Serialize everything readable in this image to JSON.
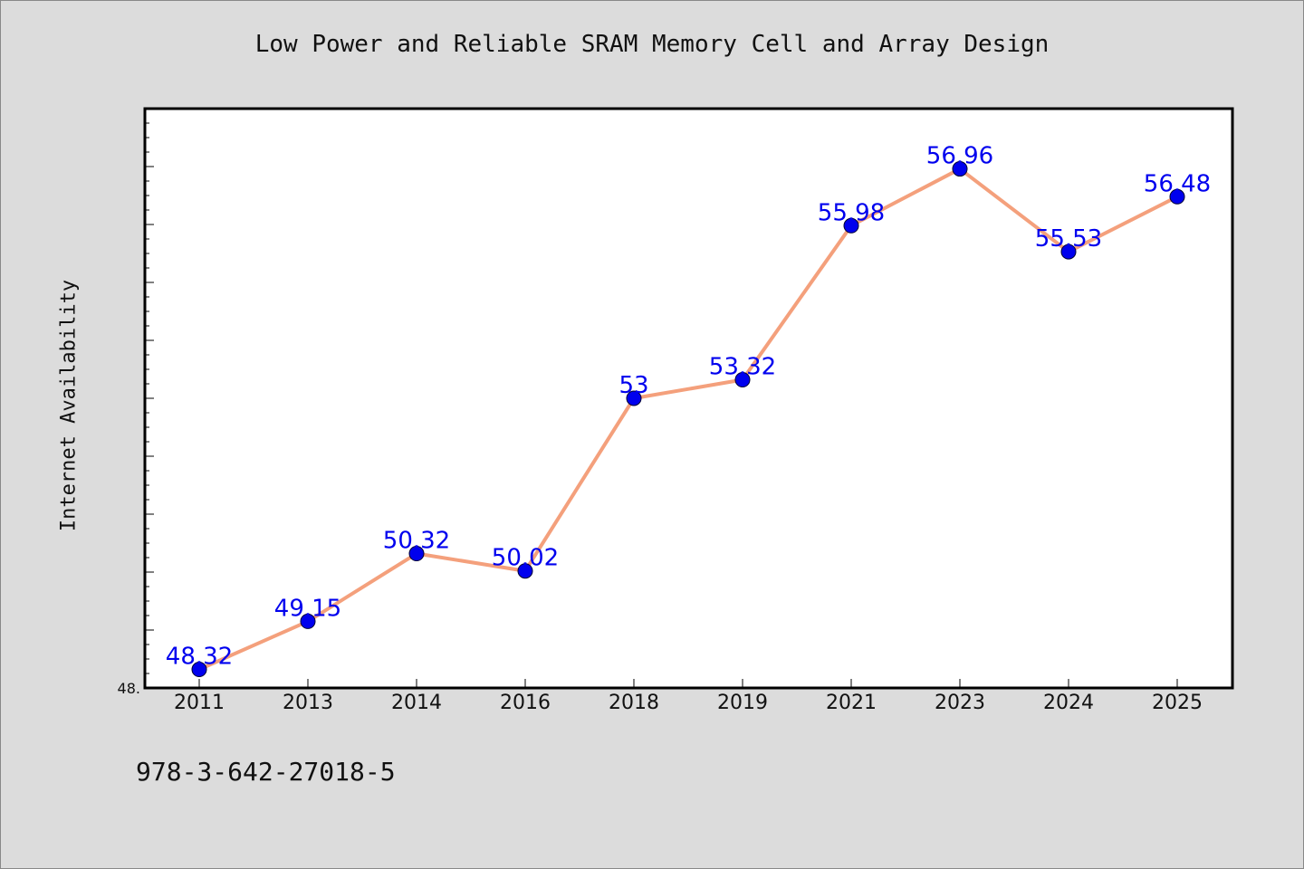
{
  "title": "Low Power and Reliable SRAM Memory Cell and Array Design",
  "footer": "978-3-642-27018-5",
  "colors": {
    "background": "#dcdcdc",
    "plot_background": "#ffffff",
    "line": "#f4a07c",
    "marker": "#0000ee",
    "label": "#0000ee"
  },
  "chart_data": {
    "type": "line",
    "title": "Low Power and Reliable SRAM Memory Cell and Array Design",
    "xlabel": "",
    "ylabel": "Internet Availability",
    "categories": [
      "2011",
      "2013",
      "2014",
      "2016",
      "2018",
      "2019",
      "2021",
      "2023",
      "2024",
      "2025"
    ],
    "series": [
      {
        "values": [
          48.32,
          49.15,
          50.32,
          50.02,
          53,
          53.32,
          55.98,
          56.96,
          55.53,
          56.48
        ],
        "labels": [
          "48.32",
          "49.15",
          "50.32",
          "50.02",
          "53",
          "53.32",
          "55.98",
          "56.96",
          "55.53",
          "56.48"
        ]
      }
    ],
    "ylim": [
      48.0,
      58.0
    ],
    "y_min_label": "48.",
    "grid": false,
    "legend": "none"
  }
}
